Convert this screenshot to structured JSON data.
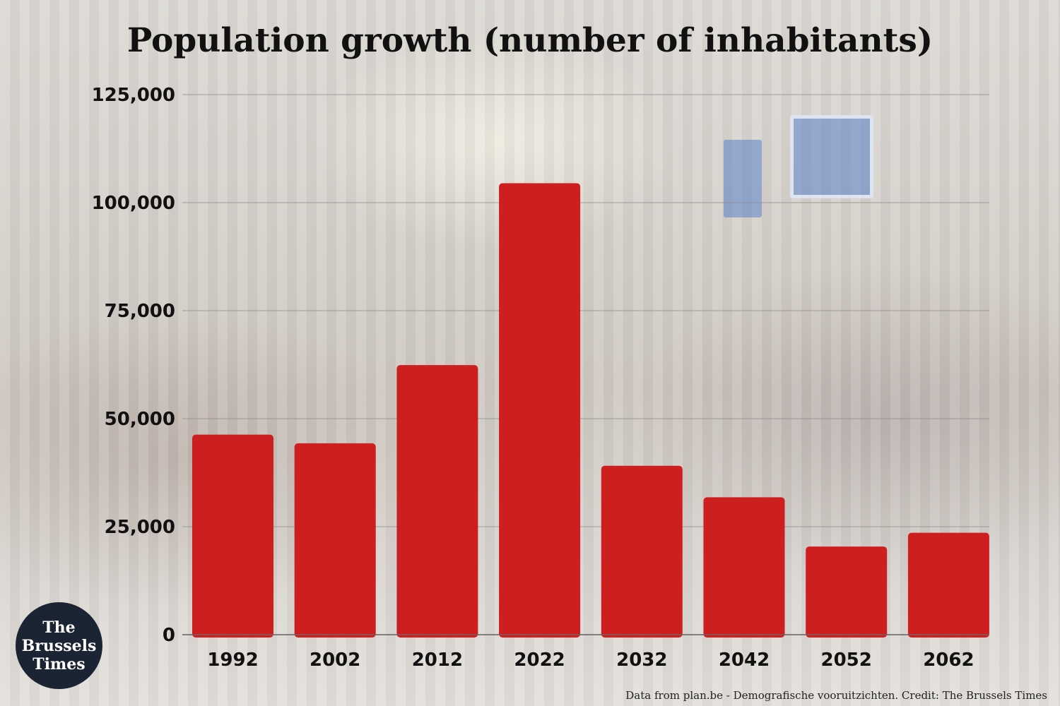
{
  "chart_data": {
    "type": "bar",
    "title": "Population growth (number of inhabitants)",
    "categories": [
      "1992",
      "2002",
      "2012",
      "2022",
      "2032",
      "2042",
      "2052",
      "2062"
    ],
    "values": [
      46300,
      44300,
      62400,
      104500,
      39100,
      31800,
      20400,
      23600
    ],
    "ylim": [
      0,
      125000
    ],
    "y_ticks": [
      0,
      25000,
      50000,
      75000,
      100000,
      125000
    ],
    "y_tick_labels": [
      "0",
      "25,000",
      "50,000",
      "75,000",
      "100,000",
      "125,000"
    ],
    "grid": true,
    "bar_color": "#cd1f1f"
  },
  "credit": "Data from plan.be - Demografische vooruitzichten. Credit: The Brussels Times",
  "logo": {
    "text": "The Brussels Times",
    "background": "#1b2433"
  }
}
